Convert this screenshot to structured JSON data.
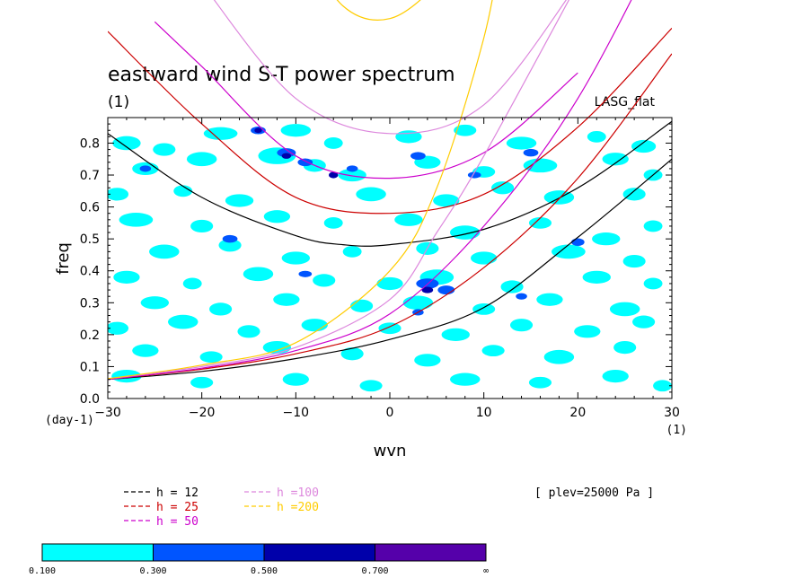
{
  "chart_data": {
    "type": "contour",
    "title": "eastward wind S-T power spectrum",
    "subtitle": "(1)",
    "model_label": "LASG_flat",
    "xlabel": "wvn",
    "ylabel": "freq",
    "x_unit": "(1)",
    "y_unit": "(day-1)",
    "xlim": [
      -30,
      30
    ],
    "ylim": [
      0,
      0.88
    ],
    "x_ticks": [
      -30,
      -20,
      -10,
      0,
      10,
      20,
      30
    ],
    "x_tick_labels": [
      "−30",
      "−20",
      "−10",
      "0",
      "10",
      "20",
      "30"
    ],
    "y_ticks": [
      0.0,
      0.1,
      0.2,
      0.3,
      0.4,
      0.5,
      0.6,
      0.7,
      0.8
    ],
    "y_tick_labels": [
      "0.0",
      "0.1",
      "0.2",
      "0.3",
      "0.4",
      "0.5",
      "0.6",
      "0.7",
      "0.8"
    ],
    "plev_label": "[ plev=25000 Pa ]",
    "dispersion_curves": [
      {
        "name": "h = 12",
        "h": 12,
        "color": "#000000",
        "kelvin": [
          [
            -30,
            0.06
          ],
          [
            -20,
            0.085
          ],
          [
            -10,
            0.125
          ],
          [
            0,
            0.185
          ],
          [
            10,
            0.285
          ],
          [
            20,
            0.505
          ],
          [
            30,
            0.75
          ]
        ],
        "rossby_gravity": [
          [
            -30,
            0.83
          ],
          [
            -20,
            0.63
          ],
          [
            -10,
            0.51
          ],
          [
            -5,
            0.482
          ],
          [
            0,
            0.482
          ],
          [
            10,
            0.53
          ],
          [
            20,
            0.66
          ],
          [
            30,
            0.868
          ]
        ]
      },
      {
        "name": "h = 25",
        "h": 25,
        "color": "#cc0000",
        "kelvin": [
          [
            -30,
            0.06
          ],
          [
            -20,
            0.092
          ],
          [
            -10,
            0.14
          ],
          [
            0,
            0.225
          ],
          [
            10,
            0.41
          ],
          [
            20,
            0.69
          ],
          [
            30,
            1.08
          ]
        ],
        "rossby_gravity": [
          [
            -30,
            1.15
          ],
          [
            -20,
            0.86
          ],
          [
            -10,
            0.63
          ],
          [
            0,
            0.58
          ],
          [
            10,
            0.64
          ],
          [
            20,
            0.85
          ],
          [
            30,
            1.16
          ]
        ]
      },
      {
        "name": "h = 50",
        "h": 50,
        "color": "#cc00cc",
        "kelvin": [
          [
            -30,
            0.06
          ],
          [
            -20,
            0.095
          ],
          [
            -10,
            0.15
          ],
          [
            0,
            0.265
          ],
          [
            10,
            0.54
          ],
          [
            20,
            0.94
          ],
          [
            30,
            1.5
          ]
        ],
        "rossby_gravity": [
          [
            -25,
            1.18
          ],
          [
            -20,
            1.04
          ],
          [
            -10,
            0.76
          ],
          [
            0,
            0.69
          ],
          [
            10,
            0.77
          ],
          [
            20,
            1.02
          ]
        ]
      },
      {
        "name": "h =100",
        "h": 100,
        "color": "#dd88dd",
        "kelvin": [
          [
            -30,
            0.062
          ],
          [
            -20,
            0.1
          ],
          [
            -10,
            0.16
          ],
          [
            0,
            0.31
          ],
          [
            5,
            0.52
          ],
          [
            10,
            0.76
          ],
          [
            20,
            1.3
          ]
        ],
        "rossby_gravity": [
          [
            -20,
            1.3
          ],
          [
            -10,
            0.94
          ],
          [
            0,
            0.83
          ],
          [
            10,
            0.92
          ],
          [
            20,
            1.3
          ]
        ]
      },
      {
        "name": "h =200",
        "h": 200,
        "color": "#ffcc00",
        "kelvin": [
          [
            -30,
            0.062
          ],
          [
            -20,
            0.105
          ],
          [
            -10,
            0.175
          ],
          [
            0,
            0.4
          ],
          [
            5,
            0.66
          ],
          [
            10,
            1.13
          ],
          [
            12,
            1.45
          ]
        ],
        "rossby_gravity": [
          [
            -10,
            1.45
          ],
          [
            -5,
            1.23
          ],
          [
            0,
            1.19
          ],
          [
            5,
            1.3
          ],
          [
            8,
            1.45
          ]
        ]
      }
    ],
    "colorbar": {
      "levels": [
        "0.100",
        "0.300",
        "0.500",
        "0.700",
        "∞"
      ],
      "colors": [
        "#00ffff",
        "#0055ff",
        "#0000aa",
        "#5500aa"
      ]
    },
    "contour_patches": [
      [
        -28,
        0.8,
        1.5,
        0.022,
        0
      ],
      [
        -24,
        0.78,
        1.2,
        0.02,
        0
      ],
      [
        -18,
        0.83,
        1.8,
        0.02,
        0
      ],
      [
        -10,
        0.84,
        1.6,
        0.02,
        0
      ],
      [
        -6,
        0.8,
        1.0,
        0.018,
        0
      ],
      [
        2,
        0.82,
        1.4,
        0.02,
        0
      ],
      [
        8,
        0.84,
        1.2,
        0.018,
        0
      ],
      [
        14,
        0.8,
        1.6,
        0.02,
        0
      ],
      [
        22,
        0.82,
        1.0,
        0.018,
        0
      ],
      [
        27,
        0.79,
        1.3,
        0.02,
        0
      ],
      [
        -26,
        0.72,
        1.4,
        0.02,
        0
      ],
      [
        -20,
        0.75,
        1.6,
        0.022,
        0
      ],
      [
        -12,
        0.76,
        2.0,
        0.026,
        0
      ],
      [
        -8,
        0.73,
        1.2,
        0.02,
        0
      ],
      [
        -4,
        0.7,
        1.5,
        0.02,
        0
      ],
      [
        4,
        0.74,
        1.4,
        0.02,
        0
      ],
      [
        10,
        0.71,
        1.2,
        0.018,
        0
      ],
      [
        16,
        0.73,
        1.8,
        0.022,
        0
      ],
      [
        24,
        0.75,
        1.4,
        0.02,
        0
      ],
      [
        28,
        0.7,
        1.0,
        0.018,
        0
      ],
      [
        -29,
        0.64,
        1.2,
        0.02,
        0
      ],
      [
        -22,
        0.65,
        1.0,
        0.018,
        0
      ],
      [
        -16,
        0.62,
        1.5,
        0.02,
        0
      ],
      [
        -2,
        0.64,
        1.6,
        0.022,
        0
      ],
      [
        6,
        0.62,
        1.4,
        0.02,
        0
      ],
      [
        12,
        0.66,
        1.2,
        0.02,
        0
      ],
      [
        18,
        0.63,
        1.6,
        0.022,
        0
      ],
      [
        26,
        0.64,
        1.2,
        0.02,
        0
      ],
      [
        -27,
        0.56,
        1.8,
        0.022,
        0
      ],
      [
        -20,
        0.54,
        1.2,
        0.02,
        0
      ],
      [
        -12,
        0.57,
        1.4,
        0.02,
        0
      ],
      [
        -6,
        0.55,
        1.0,
        0.018,
        0
      ],
      [
        2,
        0.56,
        1.5,
        0.02,
        0
      ],
      [
        8,
        0.52,
        1.6,
        0.022,
        0
      ],
      [
        16,
        0.55,
        1.2,
        0.018,
        0
      ],
      [
        23,
        0.5,
        1.5,
        0.02,
        0
      ],
      [
        28,
        0.54,
        1.0,
        0.018,
        0
      ],
      [
        -24,
        0.46,
        1.6,
        0.022,
        0
      ],
      [
        -17,
        0.48,
        1.2,
        0.02,
        0
      ],
      [
        -10,
        0.44,
        1.5,
        0.02,
        0
      ],
      [
        -4,
        0.46,
        1.0,
        0.018,
        0
      ],
      [
        4,
        0.47,
        1.2,
        0.02,
        0
      ],
      [
        10,
        0.44,
        1.4,
        0.02,
        0
      ],
      [
        19,
        0.46,
        1.8,
        0.022,
        0
      ],
      [
        26,
        0.43,
        1.2,
        0.02,
        0
      ],
      [
        -28,
        0.38,
        1.4,
        0.02,
        0
      ],
      [
        -21,
        0.36,
        1.0,
        0.018,
        0
      ],
      [
        -14,
        0.39,
        1.6,
        0.022,
        0
      ],
      [
        -7,
        0.37,
        1.2,
        0.02,
        0
      ],
      [
        0,
        0.36,
        1.4,
        0.02,
        0
      ],
      [
        5,
        0.38,
        1.8,
        0.024,
        0
      ],
      [
        13,
        0.35,
        1.2,
        0.02,
        0
      ],
      [
        22,
        0.38,
        1.5,
        0.02,
        0
      ],
      [
        28,
        0.36,
        1.0,
        0.018,
        0
      ],
      [
        -25,
        0.3,
        1.5,
        0.02,
        0
      ],
      [
        -18,
        0.28,
        1.2,
        0.02,
        0
      ],
      [
        -11,
        0.31,
        1.4,
        0.02,
        0
      ],
      [
        -3,
        0.29,
        1.2,
        0.02,
        0
      ],
      [
        3,
        0.3,
        1.6,
        0.022,
        0
      ],
      [
        10,
        0.28,
        1.2,
        0.018,
        0
      ],
      [
        17,
        0.31,
        1.4,
        0.02,
        0
      ],
      [
        25,
        0.28,
        1.6,
        0.022,
        0
      ],
      [
        -29,
        0.22,
        1.2,
        0.02,
        0
      ],
      [
        -22,
        0.24,
        1.6,
        0.022,
        0
      ],
      [
        -15,
        0.21,
        1.2,
        0.02,
        0
      ],
      [
        -8,
        0.23,
        1.4,
        0.02,
        0
      ],
      [
        0,
        0.22,
        1.2,
        0.018,
        0
      ],
      [
        7,
        0.2,
        1.5,
        0.02,
        0
      ],
      [
        14,
        0.23,
        1.2,
        0.02,
        0
      ],
      [
        21,
        0.21,
        1.4,
        0.02,
        0
      ],
      [
        27,
        0.24,
        1.2,
        0.02,
        0
      ],
      [
        -26,
        0.15,
        1.4,
        0.02,
        0
      ],
      [
        -19,
        0.13,
        1.2,
        0.018,
        0
      ],
      [
        -12,
        0.16,
        1.5,
        0.02,
        0
      ],
      [
        -4,
        0.14,
        1.2,
        0.02,
        0
      ],
      [
        4,
        0.12,
        1.4,
        0.02,
        0
      ],
      [
        11,
        0.15,
        1.2,
        0.018,
        0
      ],
      [
        18,
        0.13,
        1.6,
        0.022,
        0
      ],
      [
        25,
        0.16,
        1.2,
        0.02,
        0
      ],
      [
        -28,
        0.07,
        1.6,
        0.02,
        0
      ],
      [
        -20,
        0.05,
        1.2,
        0.018,
        0
      ],
      [
        -10,
        0.06,
        1.4,
        0.02,
        0
      ],
      [
        -2,
        0.04,
        1.2,
        0.018,
        0
      ],
      [
        8,
        0.06,
        1.6,
        0.02,
        0
      ],
      [
        16,
        0.05,
        1.2,
        0.018,
        0
      ],
      [
        24,
        0.07,
        1.4,
        0.02,
        0
      ],
      [
        29,
        0.04,
        1.0,
        0.018,
        0
      ],
      [
        -14,
        0.84,
        0.8,
        0.012,
        1
      ],
      [
        -11,
        0.77,
        1.0,
        0.014,
        1
      ],
      [
        -9,
        0.74,
        0.8,
        0.012,
        1
      ],
      [
        -4,
        0.72,
        0.6,
        0.01,
        1
      ],
      [
        3,
        0.76,
        0.8,
        0.012,
        1
      ],
      [
        9,
        0.7,
        0.7,
        0.01,
        1
      ],
      [
        15,
        0.77,
        0.8,
        0.012,
        1
      ],
      [
        -17,
        0.5,
        0.8,
        0.012,
        1
      ],
      [
        4,
        0.36,
        1.2,
        0.016,
        1
      ],
      [
        6,
        0.34,
        0.9,
        0.014,
        1
      ],
      [
        3,
        0.27,
        0.6,
        0.01,
        1
      ],
      [
        -9,
        0.39,
        0.7,
        0.01,
        1
      ],
      [
        20,
        0.49,
        0.7,
        0.012,
        1
      ],
      [
        14,
        0.32,
        0.6,
        0.01,
        1
      ],
      [
        -26,
        0.72,
        0.6,
        0.01,
        1
      ],
      [
        -6,
        0.7,
        0.5,
        0.01,
        2
      ],
      [
        4,
        0.34,
        0.6,
        0.01,
        2
      ],
      [
        -11,
        0.76,
        0.5,
        0.009,
        2
      ],
      [
        -14,
        0.84,
        0.4,
        0.008,
        2
      ]
    ]
  }
}
